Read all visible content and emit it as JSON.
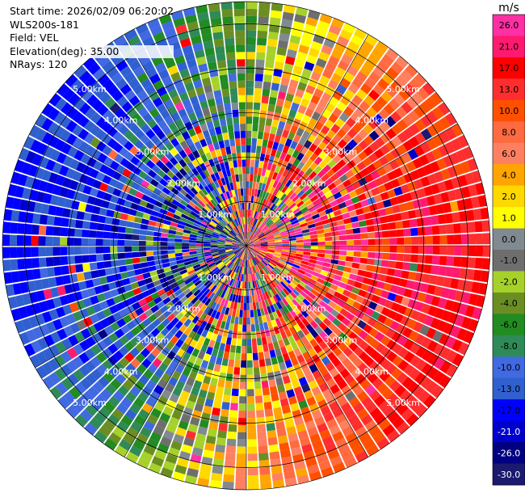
{
  "header": {
    "start_time": "Start time: 2026/02/09 06:20:02",
    "instrument": "WLS200s-181",
    "field": "Field: VEL",
    "elevation": "Elevation(deg): 35.00",
    "nrays": "NRays: 120"
  },
  "chart_data": {
    "type": "ppi",
    "title": "",
    "field": "VEL",
    "units": "m/s",
    "nrays": 120,
    "max_range_km": 5.5,
    "range_rings_km": [
      1,
      2,
      3,
      4,
      5
    ],
    "ring_labels": [
      "1.00km",
      "2.00km",
      "3.00km",
      "4.00km",
      "5.00km"
    ],
    "radial_velocity_pattern": "negative (approaching) to the west, positive (receding) to the east, noisy near center",
    "colorbar": {
      "label": "m/s",
      "ticks": [
        "26.0",
        "21.0",
        "17.0",
        "13.0",
        "10.0",
        "8.0",
        "6.0",
        "4.0",
        "2.0",
        "1.0",
        "0.0",
        "-1.0",
        "-2.0",
        "-4.0",
        "-6.0",
        "-8.0",
        "-10.0",
        "-13.0",
        "-17.0",
        "-21.0",
        "-26.0",
        "-30.0"
      ],
      "colors": [
        "#ff2fa4",
        "#ff1a70",
        "#ff0000",
        "#ff2e2e",
        "#ff5000",
        "#ff6a40",
        "#ff8060",
        "#ffa500",
        "#ffd800",
        "#ffff00",
        "#808a90",
        "#6e6e6e",
        "#a6d12a",
        "#6b8e23",
        "#228b22",
        "#2e8b57",
        "#4169e1",
        "#3060d0",
        "#0000ff",
        "#0000cd",
        "#000080",
        "#1a1a6e"
      ]
    }
  }
}
